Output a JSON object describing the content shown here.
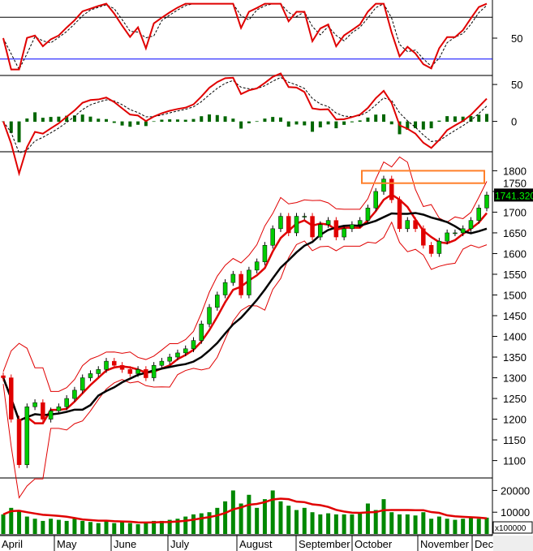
{
  "chart_data": {
    "type": "candlestick",
    "last_price_label": "1741.320",
    "x_tick_labels": [
      "April",
      "May",
      "June",
      "July",
      "August",
      "September",
      "October",
      "November",
      "Dec"
    ],
    "price_axis": {
      "ticks": [
        1100,
        1150,
        1200,
        1250,
        1300,
        1350,
        1400,
        1450,
        1500,
        1550,
        1600,
        1650,
        1700,
        1750,
        1800
      ],
      "ylim": [
        1060,
        1840
      ]
    },
    "rsi_axis": {
      "ticks": [
        50
      ],
      "overbought": 70,
      "oversold": 30,
      "ylim": [
        15,
        85
      ]
    },
    "macd_axis": {
      "ticks": [
        50,
        0
      ],
      "ylim": [
        -40,
        60
      ]
    },
    "volume_axis": {
      "ticks": [
        10000,
        20000
      ],
      "unit_label": "x100000",
      "ylim": [
        0,
        25000
      ]
    },
    "closes": [
      1300,
      1200,
      1090,
      1230,
      1240,
      1200,
      1220,
      1230,
      1250,
      1270,
      1300,
      1310,
      1320,
      1340,
      1330,
      1320,
      1310,
      1320,
      1300,
      1330,
      1340,
      1350,
      1360,
      1370,
      1390,
      1430,
      1470,
      1500,
      1530,
      1550,
      1500,
      1560,
      1580,
      1620,
      1660,
      1690,
      1650,
      1690,
      1690,
      1640,
      1670,
      1680,
      1640,
      1660,
      1670,
      1680,
      1710,
      1750,
      1780,
      1730,
      1660,
      1680,
      1660,
      1620,
      1600,
      1630,
      1650,
      1650,
      1660,
      1680,
      1710,
      1741.32
    ],
    "volumes": [
      9000,
      12000,
      11000,
      8000,
      7000,
      6000,
      7000,
      6500,
      6000,
      7000,
      6000,
      5500,
      5000,
      6000,
      5000,
      5500,
      5000,
      4500,
      5500,
      6000,
      6000,
      6500,
      7000,
      8000,
      9000,
      9500,
      10000,
      12000,
      15000,
      20000,
      14000,
      18000,
      12000,
      16000,
      20000,
      15000,
      13000,
      11000,
      12000,
      10000,
      9000,
      9500,
      9000,
      9000,
      9000,
      10000,
      14000,
      11000,
      16000,
      10000,
      9000,
      9000,
      8500,
      10000,
      7000,
      8000,
      7000,
      6500,
      7000,
      7500,
      7000,
      7500
    ],
    "annotation_box": {
      "price_from": 1770,
      "price_to": 1800,
      "color": "#ff7f2a"
    },
    "colors": {
      "up": "#00cc00",
      "down": "#e00000",
      "ma_fast": "#e00000",
      "ma_slow": "#000000",
      "bands": "#e00000",
      "rsi_levels_high": "#000000",
      "rsi_levels_low": "#0000ff",
      "volume": "#008800"
    }
  }
}
